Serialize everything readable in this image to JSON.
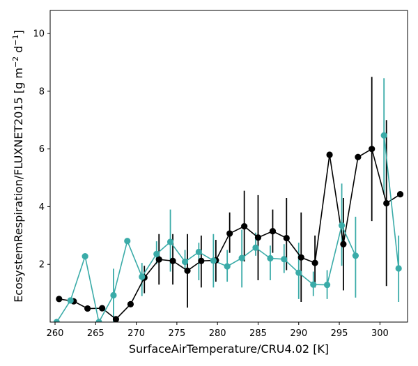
{
  "chart_data": {
    "type": "line",
    "xlabel": "SurfaceAirTemperature/CRU4.02 [K]",
    "ylabel_parts": [
      "EcosystemRespiration/FLUXNET2015 [g m",
      "−2",
      " d",
      "−1",
      "]"
    ],
    "xlim": [
      259.4,
      303.4
    ],
    "ylim": [
      0,
      10.8
    ],
    "xticks": [
      260,
      265,
      270,
      275,
      280,
      285,
      290,
      295,
      300
    ],
    "yticks": [
      2,
      4,
      6,
      8,
      10
    ],
    "grid": false,
    "series": [
      {
        "color": "#000000",
        "x": [
          260.5,
          262.3,
          264.0,
          265.8,
          267.5,
          269.3,
          271.0,
          272.8,
          274.5,
          276.3,
          278.0,
          279.8,
          281.5,
          283.3,
          285.0,
          286.8,
          288.5,
          290.3,
          292.0,
          293.8,
          295.5,
          297.3,
          299.0,
          300.8,
          302.5
        ],
        "y": [
          0.8,
          0.72,
          0.47,
          0.48,
          0.1,
          0.62,
          1.54,
          2.17,
          2.12,
          1.78,
          2.12,
          2.14,
          3.07,
          3.32,
          2.93,
          3.15,
          2.91,
          2.24,
          2.05,
          5.8,
          2.7,
          5.72,
          6.0,
          4.12,
          4.43
        ],
        "err_low": [
          null,
          null,
          null,
          null,
          null,
          null,
          1.0,
          1.3,
          1.3,
          0.5,
          1.2,
          1.4,
          2.4,
          2.1,
          1.45,
          2.4,
          1.8,
          0.7,
          1.2,
          null,
          1.1,
          null,
          3.5,
          1.25,
          null
        ],
        "err_high": [
          null,
          null,
          null,
          null,
          null,
          null,
          1.95,
          3.05,
          3.05,
          3.05,
          3.0,
          2.85,
          3.8,
          4.55,
          4.4,
          3.9,
          4.3,
          3.8,
          3.0,
          null,
          4.3,
          null,
          8.5,
          7.0,
          null
        ]
      },
      {
        "color": "#3aaba8",
        "x": [
          260.2,
          261.9,
          263.7,
          265.4,
          267.2,
          268.9,
          270.7,
          272.5,
          274.2,
          276.0,
          277.7,
          279.5,
          281.2,
          283.0,
          284.7,
          286.5,
          288.2,
          290.0,
          291.8,
          293.5,
          295.3,
          297.0,
          298.8,
          300.5,
          302.3
        ],
        "y": [
          0.0,
          0.75,
          2.28,
          0.0,
          0.93,
          2.81,
          1.57,
          2.36,
          2.78,
          2.09,
          2.43,
          2.13,
          1.93,
          2.22,
          2.58,
          2.21,
          2.18,
          1.71,
          1.3,
          1.29,
          3.35,
          2.3,
          null,
          6.47,
          1.86
        ],
        "err_low": [
          null,
          null,
          null,
          null,
          0.0,
          null,
          0.9,
          2.0,
          1.75,
          1.75,
          1.45,
          1.2,
          1.4,
          1.2,
          2.3,
          1.45,
          1.7,
          0.8,
          0.9,
          0.8,
          1.95,
          0.85,
          null,
          4.4,
          0.7
        ],
        "err_high": [
          null,
          null,
          null,
          null,
          1.85,
          null,
          2.05,
          2.8,
          3.9,
          2.5,
          2.75,
          3.05,
          2.5,
          3.2,
          3.1,
          2.65,
          2.7,
          2.75,
          1.75,
          1.8,
          4.8,
          3.65,
          null,
          8.45,
          3.0
        ]
      }
    ]
  }
}
